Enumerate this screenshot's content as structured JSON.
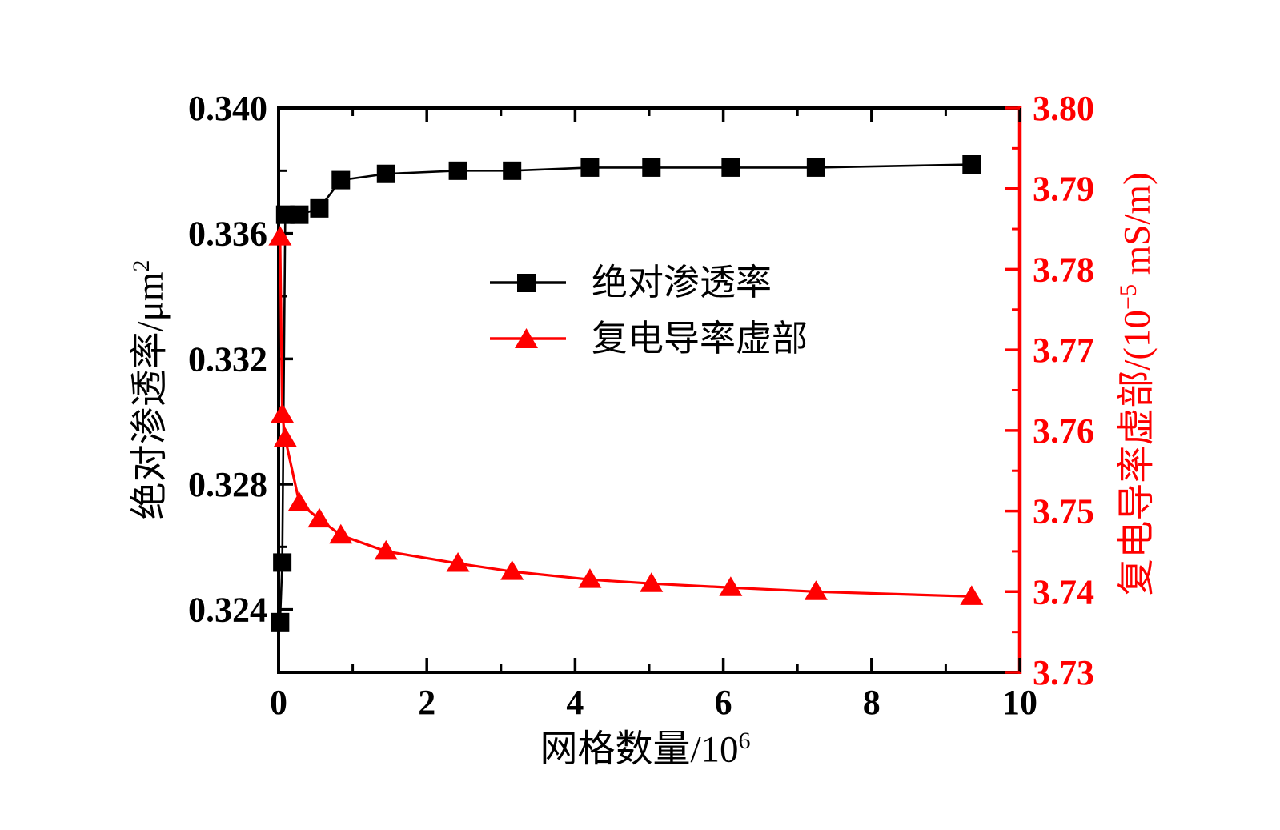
{
  "chart_data": {
    "type": "line",
    "title": "",
    "x": [
      0.02,
      0.05,
      0.09,
      0.28,
      0.55,
      0.84,
      1.45,
      2.42,
      3.15,
      4.2,
      5.03,
      6.1,
      7.25,
      9.35
    ],
    "series": [
      {
        "name": "绝对渗透率",
        "axis": "left",
        "color": "#000000",
        "marker": "square",
        "values": [
          0.3236,
          0.3255,
          0.3366,
          0.3366,
          0.3368,
          0.3377,
          0.3379,
          0.338,
          0.338,
          0.3381,
          0.3381,
          0.3381,
          0.3381,
          0.3382
        ]
      },
      {
        "name": "复电导率虚部",
        "axis": "right",
        "color": "#ff0000",
        "marker": "triangle",
        "values": [
          3.784,
          3.762,
          3.759,
          3.751,
          3.749,
          3.747,
          3.745,
          3.7435,
          3.7425,
          3.7415,
          3.741,
          3.7405,
          3.74,
          3.7394
        ]
      }
    ],
    "x_axis": {
      "label": "网格数量/10",
      "label_sup": "6",
      "range": [
        0,
        10
      ],
      "major_ticks": [
        0,
        2,
        4,
        6,
        8,
        10
      ],
      "tick_labels": [
        "0",
        "2",
        "4",
        "6",
        "8",
        "10"
      ],
      "minor_ticks": [
        1,
        3,
        5,
        7,
        9
      ]
    },
    "left_axis": {
      "label": "绝对渗透率/μm",
      "label_sup": "2",
      "range": [
        0.322,
        0.34
      ],
      "major_ticks": [
        0.324,
        0.328,
        0.332,
        0.336,
        0.34
      ],
      "tick_labels": [
        "0.324",
        "0.328",
        "0.332",
        "0.336",
        "0.340"
      ],
      "minor_ticks": [
        0.326,
        0.33,
        0.334,
        0.338
      ],
      "color": "#000000"
    },
    "right_axis": {
      "label_pre": "复电导率虚部/(10",
      "label_sup": "−5",
      "label_post": " mS/m)",
      "range": [
        3.73,
        3.8
      ],
      "major_ticks": [
        3.73,
        3.74,
        3.75,
        3.76,
        3.77,
        3.78,
        3.79,
        3.8
      ],
      "tick_labels": [
        "3.73",
        "3.74",
        "3.75",
        "3.76",
        "3.77",
        "3.78",
        "3.79",
        "3.80"
      ],
      "minor_ticks": [
        3.735,
        3.745,
        3.755,
        3.765,
        3.775,
        3.785,
        3.795
      ],
      "color": "#ff0000"
    },
    "legend_position": "center",
    "grid": false
  }
}
